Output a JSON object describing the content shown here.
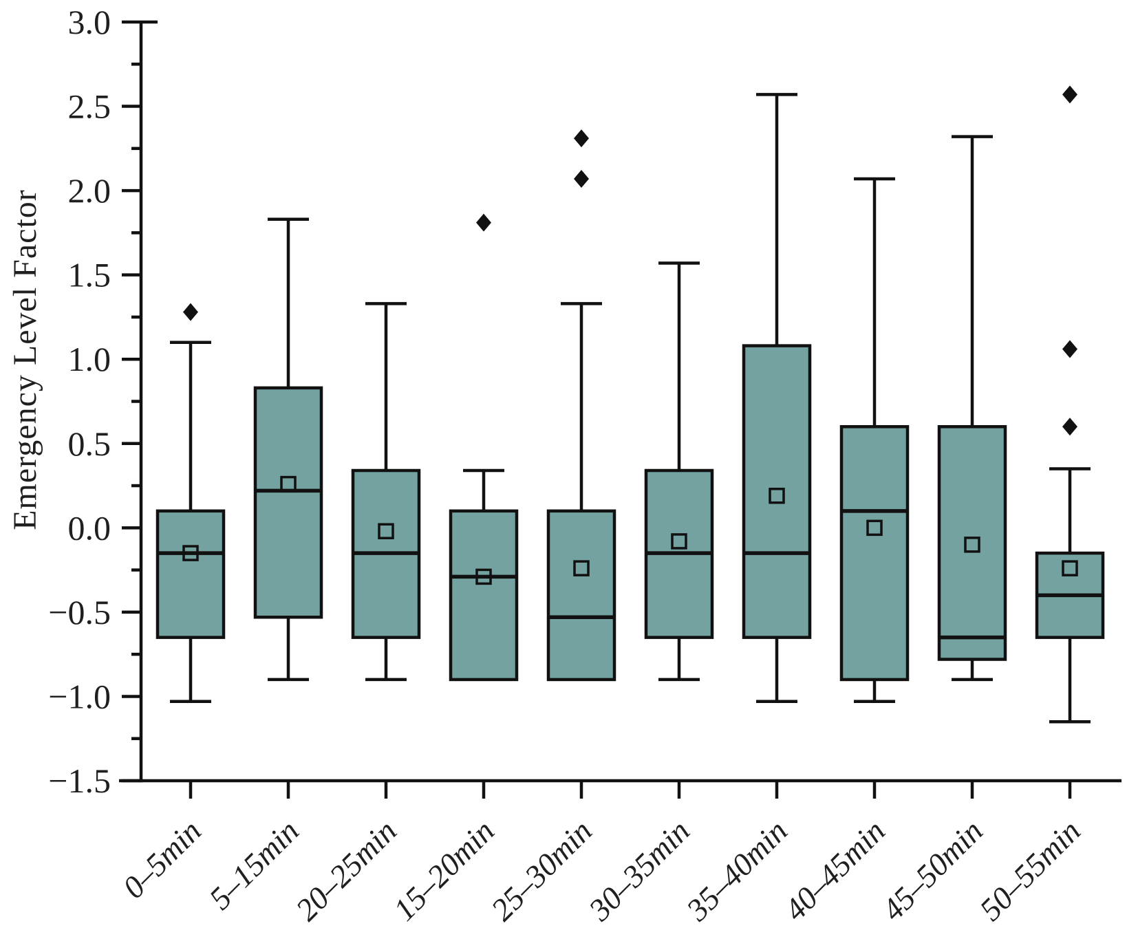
{
  "figure": {
    "background": "#ffffff"
  },
  "chart_data": {
    "type": "box",
    "title": "",
    "xlabel": "",
    "ylabel": "Emergency Level Factor",
    "ylim": [
      -1.5,
      3.0
    ],
    "y_major_ticks": [
      3.0,
      2.5,
      2.0,
      1.5,
      1.0,
      0.5,
      0.0,
      -0.5,
      -1.0,
      -1.5
    ],
    "y_major_tick_labels": [
      "3.0",
      "2.5",
      "2.0",
      "1.5",
      "1.0",
      "0.5",
      "0.0",
      "−0.5",
      "−1.0",
      "−1.5"
    ],
    "y_minor_tick_step": 0.25,
    "grid": false,
    "legend": "none",
    "categories": [
      "0–5min",
      "5–15min",
      "20–25min",
      "15–20min",
      "25–30min",
      "30–35min",
      "35–40min",
      "40–45min",
      "45–50min",
      "50–55min"
    ],
    "boxes": [
      {
        "category": "0–5min",
        "whisker_low": -1.03,
        "q1": -0.65,
        "median": -0.15,
        "q3": 0.1,
        "whisker_high": 1.1,
        "mean": -0.15,
        "outliers": [
          1.28
        ]
      },
      {
        "category": "5–15min",
        "whisker_low": -0.9,
        "q1": -0.53,
        "median": 0.22,
        "q3": 0.83,
        "whisker_high": 1.83,
        "mean": 0.26,
        "outliers": []
      },
      {
        "category": "20–25min",
        "whisker_low": -0.9,
        "q1": -0.65,
        "median": -0.15,
        "q3": 0.34,
        "whisker_high": 1.33,
        "mean": -0.02,
        "outliers": []
      },
      {
        "category": "15–20min",
        "whisker_low": -0.9,
        "q1": -0.9,
        "median": -0.29,
        "q3": 0.1,
        "whisker_high": 0.34,
        "mean": -0.29,
        "outliers": [
          1.81
        ]
      },
      {
        "category": "25–30min",
        "whisker_low": -0.9,
        "q1": -0.9,
        "median": -0.53,
        "q3": 0.1,
        "whisker_high": 1.33,
        "mean": -0.24,
        "outliers": [
          2.31,
          2.07
        ]
      },
      {
        "category": "30–35min",
        "whisker_low": -0.9,
        "q1": -0.65,
        "median": -0.15,
        "q3": 0.34,
        "whisker_high": 1.57,
        "mean": -0.08,
        "outliers": []
      },
      {
        "category": "35–40min",
        "whisker_low": -1.03,
        "q1": -0.65,
        "median": -0.15,
        "q3": 1.08,
        "whisker_high": 2.57,
        "mean": 0.19,
        "outliers": []
      },
      {
        "category": "40–45min",
        "whisker_low": -1.03,
        "q1": -0.9,
        "median": 0.1,
        "q3": 0.6,
        "whisker_high": 2.07,
        "mean": 0.0,
        "outliers": []
      },
      {
        "category": "45–50min",
        "whisker_low": -0.9,
        "q1": -0.78,
        "median": -0.65,
        "q3": 0.6,
        "whisker_high": 2.32,
        "mean": -0.1,
        "outliers": []
      },
      {
        "category": "50–55min",
        "whisker_low": -1.15,
        "q1": -0.65,
        "median": -0.4,
        "q3": -0.15,
        "whisker_high": 0.35,
        "mean": -0.24,
        "outliers": [
          2.57,
          1.06,
          0.6
        ]
      }
    ],
    "style": {
      "box_fill": "#73a2a1",
      "line_color": "#111111",
      "text_color": "#1f1f1f",
      "outlier_marker": "filled-diamond",
      "mean_marker": "hollow-square"
    }
  }
}
